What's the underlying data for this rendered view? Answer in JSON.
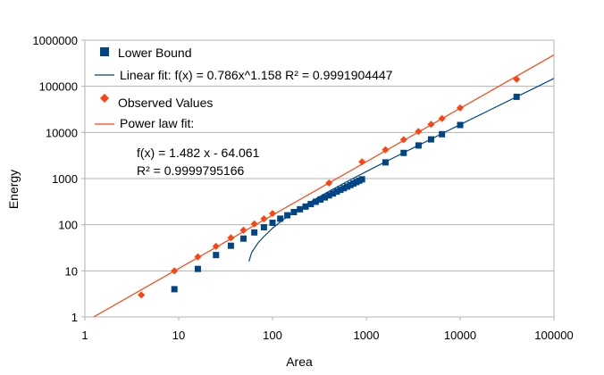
{
  "chart_data": {
    "type": "scatter",
    "x_scale": "log",
    "y_scale": "log",
    "xlabel": "Area",
    "ylabel": "Energy",
    "xlim": [
      1,
      100000
    ],
    "ylim": [
      1,
      1000000
    ],
    "x_ticks": [
      "1",
      "10",
      "100",
      "1000",
      "10000",
      "100000"
    ],
    "y_ticks": [
      "1",
      "10",
      "100",
      "1000",
      "10000",
      "100000",
      "1000000"
    ],
    "grid": "horizontal",
    "legend_position": "top-left",
    "series": [
      {
        "name": "Lower Bound",
        "kind": "points",
        "marker": "square",
        "color": "#004586",
        "x": [
          9,
          16,
          25,
          36,
          49,
          64,
          81,
          100,
          121,
          144,
          169,
          196,
          225,
          256,
          289,
          324,
          361,
          400,
          441,
          484,
          529,
          576,
          625,
          676,
          729,
          784,
          841,
          900,
          1600,
          2500,
          3600,
          4900,
          6400,
          10000,
          40000
        ],
        "y": [
          4,
          11,
          22,
          35,
          50,
          68,
          88,
          110,
          135,
          160,
          188,
          216,
          247,
          280,
          314,
          351,
          390,
          432,
          475,
          521,
          569,
          619,
          671,
          725,
          781,
          840,
          900,
          963,
          2242,
          3600,
          5218,
          7070,
          9153,
          14500,
          59200
        ]
      },
      {
        "name": "Linear fit:  f(x) = 0.786x^1.158   R² = 0.9991904447",
        "kind": "fit",
        "color": "#004586",
        "x": [
          56,
          60,
          70,
          80,
          100,
          130,
          170,
          230,
          300,
          400,
          550,
          750,
          1000,
          1500,
          2000,
          3000,
          5000,
          7000,
          10000,
          20000,
          40000,
          70000,
          100000
        ],
        "y": [
          16,
          25,
          40,
          54,
          84,
          129,
          188,
          277,
          381,
          529,
          751,
          1048,
          1418,
          2159,
          2900,
          4382,
          7346,
          10310,
          14756,
          29576,
          59216,
          103676,
          148136
        ]
      },
      {
        "name": "Observed Values",
        "kind": "points",
        "marker": "diamond",
        "color": "#ff420e",
        "x": [
          4,
          9,
          16,
          25,
          36,
          49,
          64,
          81,
          100,
          400,
          900,
          1600,
          2500,
          3600,
          4900,
          6400,
          10000,
          40000
        ],
        "y": [
          3,
          10,
          20,
          34,
          52,
          76,
          104,
          134,
          175,
          800,
          2300,
          4200,
          7000,
          10500,
          15000,
          20000,
          34000,
          142000
        ]
      },
      {
        "name": "Power law fit:",
        "kind": "fit",
        "color": "#ff420e",
        "x": [
          1.24,
          100000
        ],
        "y": [
          1,
          480000
        ]
      }
    ],
    "annotation": {
      "line1": "f(x) = 1.482 x - 64.061",
      "line2": "R² = 0.9999795166"
    }
  }
}
